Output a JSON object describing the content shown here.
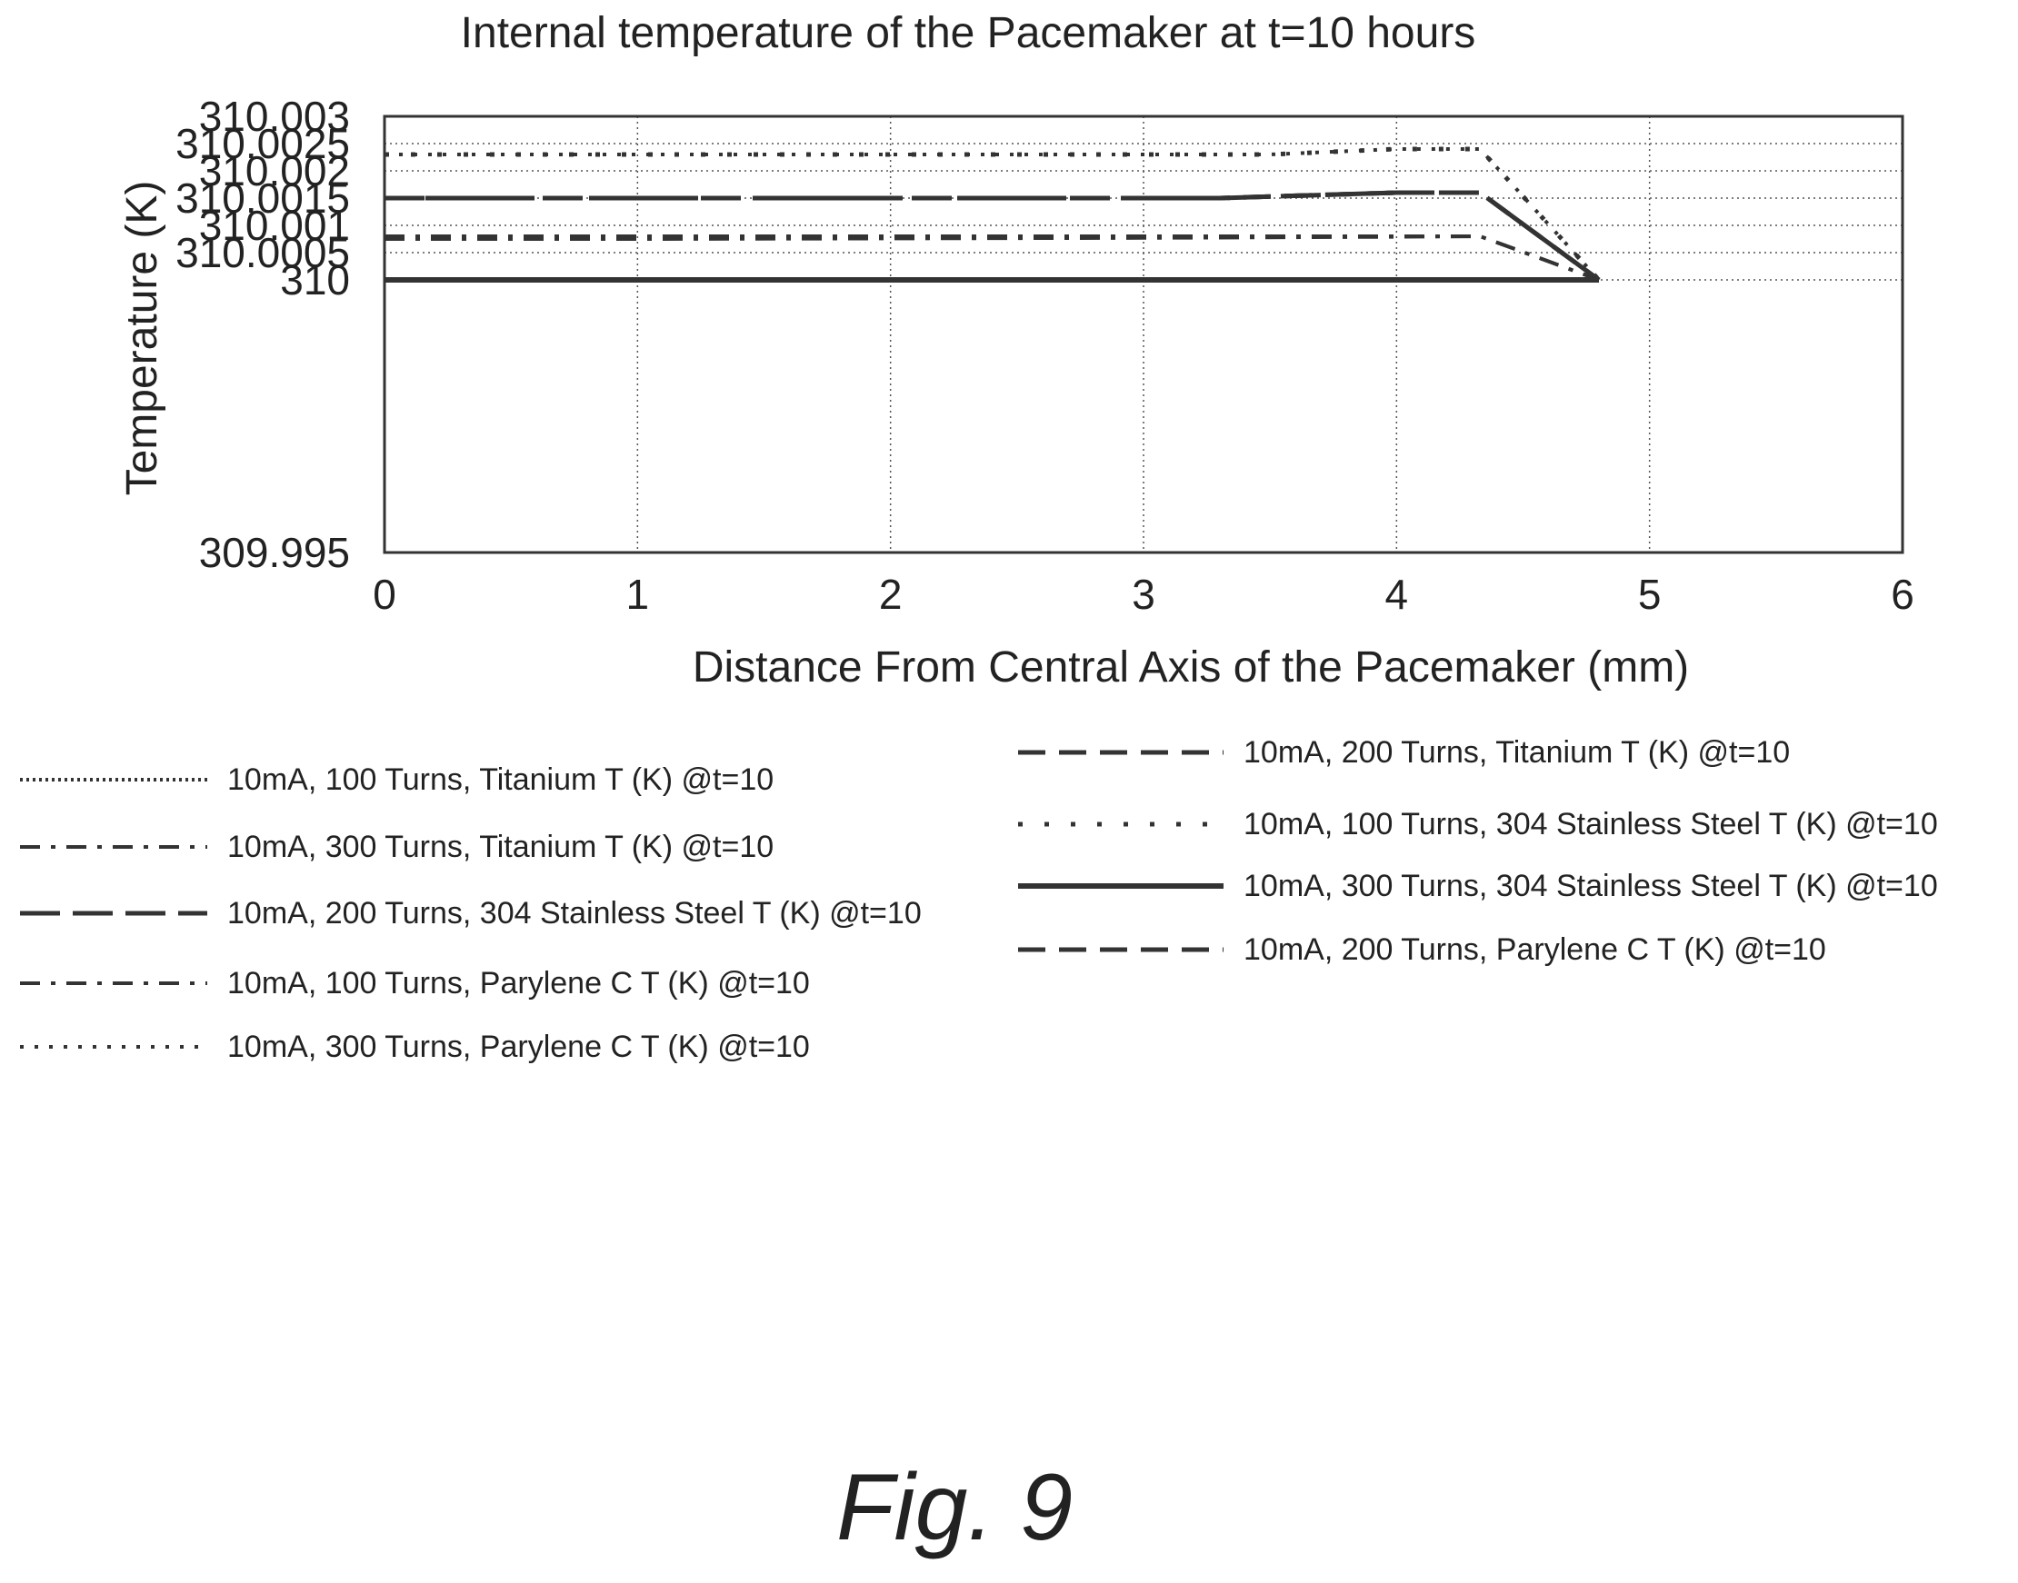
{
  "chart_data": {
    "type": "line",
    "title": "Internal temperature of the Pacemaker at t=10 hours",
    "xlabel": "Distance From Central Axis of the Pacemaker (mm)",
    "ylabel": "Temperature (K)",
    "xlim": [
      0,
      6
    ],
    "ylim": [
      309.995,
      310.003
    ],
    "x_ticks": [
      "0",
      "1",
      "2",
      "3",
      "4",
      "5",
      "6"
    ],
    "y_ticks": [
      "309.995",
      "310",
      "310.0005",
      "310.001",
      "310.0015",
      "310.002",
      "310.0025",
      "310.003"
    ],
    "grid": true,
    "legend_position": "below",
    "series": [
      {
        "name": "10mA, 100 Turns, Titanium T (K) @t=10",
        "dash": "dense-dot",
        "x": [
          0,
          1,
          2,
          3,
          4,
          4.5,
          4.8
        ],
        "y": [
          310.0,
          310.0,
          310.0,
          310.0,
          310.0,
          310.0,
          310.0
        ]
      },
      {
        "name": "10mA, 300 Turns, Titanium T (K) @t=10",
        "dash": "dash-dot",
        "x": [
          0,
          1,
          2,
          3,
          4,
          4.33,
          4.8
        ],
        "y": [
          310.00075,
          310.00075,
          310.00076,
          310.00077,
          310.00079,
          310.0008,
          310.0
        ]
      },
      {
        "name": "10mA, 200 Turns, 304 Stainless Steel T (K) @t=10",
        "dash": "long-dash",
        "x": [
          0,
          1,
          2,
          3,
          3.3,
          4,
          4.33,
          4.8
        ],
        "y": [
          310.0015,
          310.0015,
          310.0015,
          310.0015,
          310.0015,
          310.0016,
          310.0016,
          310.0
        ]
      },
      {
        "name": "10mA, 100 Turns, Parylene C T (K) @t=10",
        "dash": "dash-dot",
        "x": [
          0,
          1,
          2,
          3,
          4,
          4.33,
          4.8
        ],
        "y": [
          310.0008,
          310.0008,
          310.0008,
          310.0008,
          310.0008,
          310.0008,
          310.0
        ]
      },
      {
        "name": "10mA, 300 Turns, Parylene C T (K) @t=10",
        "dash": "dot",
        "x": [
          0,
          1,
          2,
          3,
          3.5,
          4,
          4.33,
          4.8
        ],
        "y": [
          310.0023,
          310.0023,
          310.0023,
          310.0023,
          310.0023,
          310.0024,
          310.0024,
          310.0
        ]
      },
      {
        "name": "10mA, 200 Turns, Titanium T (K) @t=10",
        "dash": "dash",
        "x": [
          0,
          1,
          2,
          3,
          3.3,
          4,
          4.33,
          4.8
        ],
        "y": [
          310.0015,
          310.0015,
          310.0015,
          310.0015,
          310.0015,
          310.0016,
          310.0016,
          310.0
        ]
      },
      {
        "name": "10mA, 100 Turns, 304 Stainless Steel T (K) @t=10",
        "dash": "sparse-dot",
        "x": [
          0,
          1,
          2,
          3,
          3.5,
          4,
          4.33,
          4.8
        ],
        "y": [
          310.0023,
          310.0023,
          310.0023,
          310.0023,
          310.0023,
          310.0024,
          310.0024,
          310.0
        ]
      },
      {
        "name": "10mA, 300 Turns, 304 Stainless Steel T (K) @t=10",
        "dash": "solid",
        "x": [
          0,
          1,
          2,
          3,
          4,
          4.5,
          4.8
        ],
        "y": [
          310.0,
          310.0,
          310.0,
          310.0,
          310.0,
          310.0,
          310.0
        ]
      },
      {
        "name": "10mA, 200 Turns, Parylene C T (K) @t=10",
        "dash": "dash",
        "x": [
          0,
          1,
          2,
          3,
          3.3,
          4,
          4.33,
          4.8
        ],
        "y": [
          310.0015,
          310.0015,
          310.0015,
          310.0015,
          310.0015,
          310.0016,
          310.0016,
          310.0
        ]
      }
    ]
  },
  "legend": [
    {
      "label": "10mA, 100 Turns, Titanium T (K) @t=10",
      "dash": "dense-dot"
    },
    {
      "label": "10mA, 300 Turns, Titanium T (K) @t=10",
      "dash": "dash-dot"
    },
    {
      "label": "10mA, 200 Turns, 304 Stainless Steel T (K) @t=10",
      "dash": "long-dash"
    },
    {
      "label": "10mA, 100 Turns, Parylene C T (K) @t=10",
      "dash": "dash-dot"
    },
    {
      "label": "10mA, 300 Turns, Parylene C T (K) @t=10",
      "dash": "dot"
    },
    {
      "label": "10mA, 200 Turns, Titanium T (K) @t=10",
      "dash": "dash"
    },
    {
      "label": "10mA, 100 Turns, 304 Stainless Steel T (K) @t=10",
      "dash": "sparse-dot"
    },
    {
      "label": "10mA, 300 Turns, 304 Stainless Steel T (K) @t=10",
      "dash": "solid"
    },
    {
      "label": "10mA, 200 Turns, Parylene C T (K) @t=10",
      "dash": "dash"
    }
  ],
  "figure_label": "Fig. 9"
}
